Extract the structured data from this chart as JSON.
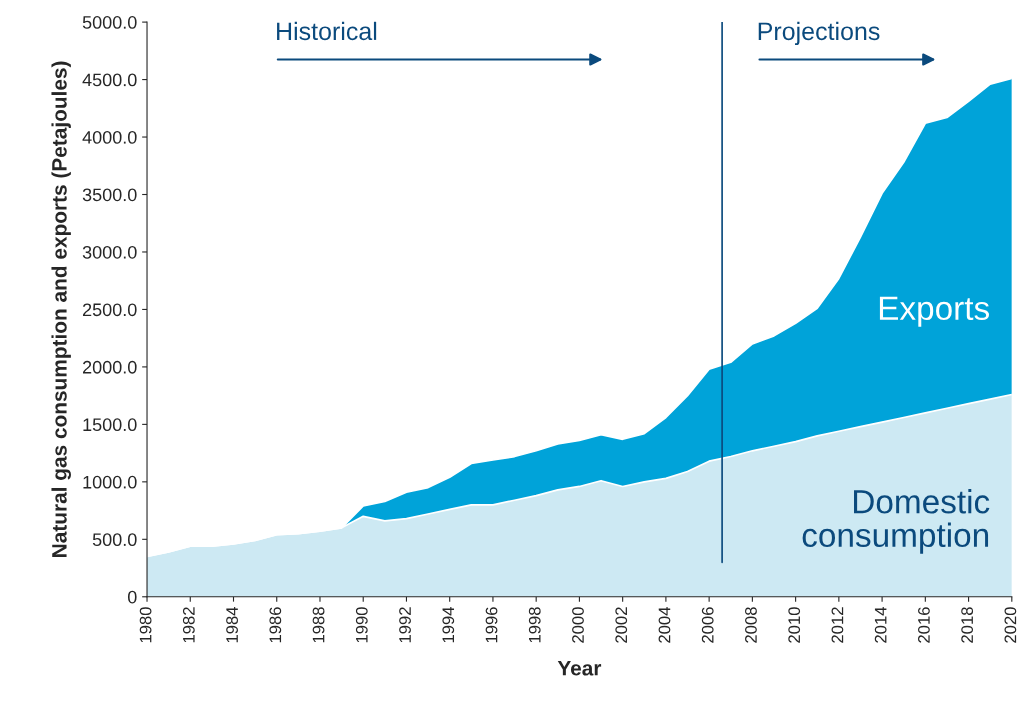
{
  "chart_data": {
    "type": "area",
    "stacked": true,
    "xlabel": "Year",
    "ylabel": "Natural gas consumption and exports (Petajoules)",
    "x": [
      1980,
      1981,
      1982,
      1983,
      1984,
      1985,
      1986,
      1987,
      1988,
      1989,
      1990,
      1991,
      1992,
      1993,
      1994,
      1995,
      1996,
      1997,
      1998,
      1999,
      2000,
      2001,
      2002,
      2003,
      2004,
      2005,
      2006,
      2007,
      2008,
      2009,
      2010,
      2011,
      2012,
      2013,
      2014,
      2015,
      2016,
      2017,
      2018,
      2019,
      2020
    ],
    "series": [
      {
        "name": "Domestic consumption",
        "color": "#cde9f3",
        "values": [
          350,
          390,
          440,
          440,
          460,
          490,
          540,
          550,
          570,
          600,
          700,
          660,
          680,
          720,
          760,
          800,
          800,
          840,
          880,
          930,
          960,
          1010,
          960,
          1000,
          1030,
          1090,
          1180,
          1220,
          1270,
          1310,
          1350,
          1400,
          1440,
          1480,
          1520,
          1560,
          1600,
          1640,
          1680,
          1720,
          1760
        ]
      },
      {
        "name": "Exports",
        "color": "#00a3d9",
        "values": [
          0,
          0,
          0,
          0,
          0,
          0,
          0,
          0,
          0,
          0,
          90,
          170,
          230,
          230,
          280,
          360,
          390,
          380,
          390,
          400,
          400,
          400,
          410,
          420,
          530,
          660,
          800,
          820,
          930,
          960,
          1030,
          1110,
          1330,
          1650,
          1990,
          2220,
          2520,
          2530,
          2630,
          2740,
          2750
        ]
      }
    ],
    "xlim": [
      1980,
      2020
    ],
    "xticks": [
      1980,
      1982,
      1984,
      1986,
      1988,
      1990,
      1992,
      1994,
      1996,
      1998,
      2000,
      2002,
      2004,
      2006,
      2008,
      2010,
      2012,
      2014,
      2016,
      2018,
      2020
    ],
    "ylim": [
      0,
      5000
    ],
    "yticks": [
      0,
      {
        "value": 500,
        "label": "500.0"
      },
      {
        "value": 1000,
        "label": "1000.0"
      },
      {
        "value": 1500,
        "label": "1500.0"
      },
      {
        "value": 2000,
        "label": "2000.0"
      },
      {
        "value": 2500,
        "label": "2500.0"
      },
      {
        "value": 3000,
        "label": "3000.0"
      },
      {
        "value": 3500,
        "label": "3500.0"
      },
      {
        "value": 4000,
        "label": "4000.0"
      },
      {
        "value": 4500,
        "label": "4500.0"
      },
      {
        "value": 5000,
        "label": "5000.0"
      }
    ],
    "ref_lines": [
      {
        "axis": "x",
        "value": 2006.6,
        "color": "#0b4a7d"
      }
    ],
    "annotations": [
      "Historical",
      "Projections"
    ],
    "grid": false,
    "legend": false
  }
}
